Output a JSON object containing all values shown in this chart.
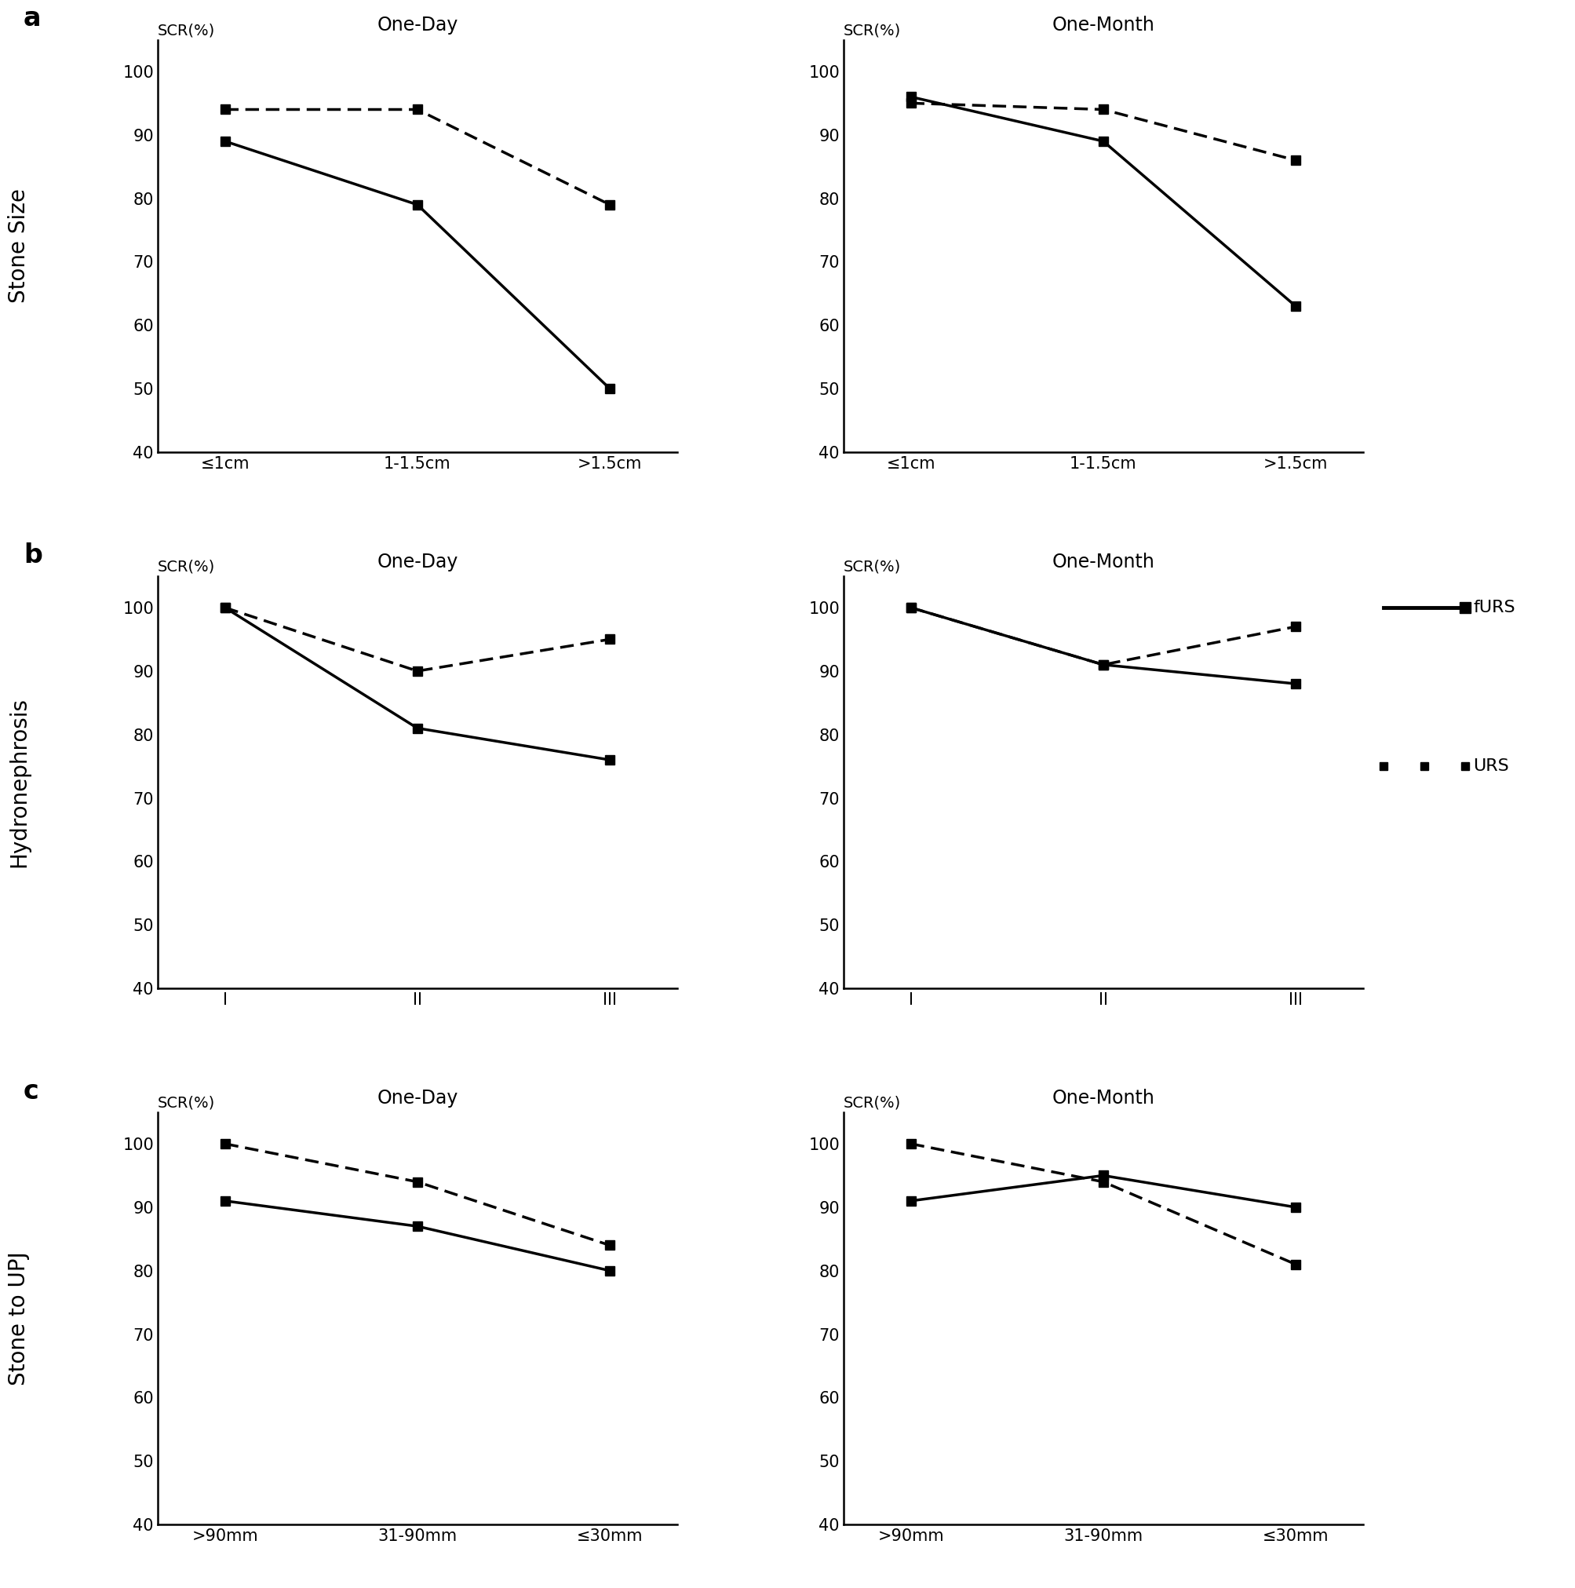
{
  "panels": [
    {
      "label": "a",
      "row_label": "Stone Size",
      "subplots": [
        {
          "title": "One-Day",
          "xticks": [
            "≤1cm",
            "1-1.5cm",
            ">1.5cm"
          ],
          "fURS": [
            89,
            79,
            50
          ],
          "URS": [
            94,
            94,
            79
          ]
        },
        {
          "title": "One-Month",
          "xticks": [
            "≤1cm",
            "1-1.5cm",
            ">1.5cm"
          ],
          "fURS": [
            96,
            89,
            63
          ],
          "URS": [
            95,
            94,
            86
          ]
        }
      ]
    },
    {
      "label": "b",
      "row_label": "Hydronephrosis",
      "subplots": [
        {
          "title": "One-Day",
          "xticks": [
            "I",
            "II",
            "III"
          ],
          "fURS": [
            100,
            81,
            76
          ],
          "URS": [
            100,
            90,
            95
          ]
        },
        {
          "title": "One-Month",
          "xticks": [
            "I",
            "II",
            "III"
          ],
          "fURS": [
            100,
            91,
            88
          ],
          "URS": [
            100,
            91,
            97
          ]
        }
      ]
    },
    {
      "label": "c",
      "row_label": "Stone to UPJ",
      "subplots": [
        {
          "title": "One-Day",
          "xticks": [
            ">90mm",
            "31-90mm",
            "≤30mm"
          ],
          "fURS": [
            91,
            87,
            80
          ],
          "URS": [
            100,
            94,
            84
          ]
        },
        {
          "title": "One-Month",
          "xticks": [
            ">90mm",
            "31-90mm",
            "≤30mm"
          ],
          "fURS": [
            91,
            95,
            90
          ],
          "URS": [
            100,
            94,
            81
          ]
        }
      ]
    }
  ],
  "ylim": [
    40,
    105
  ],
  "yticks": [
    40,
    50,
    60,
    70,
    80,
    90,
    100
  ],
  "solid_color": "#000000",
  "dashed_color": "#000000",
  "linewidth": 2.5,
  "marker": "s",
  "markersize": 9,
  "legend_solid_label": "fURS",
  "legend_dashed_label": "URS",
  "title_fontsize": 17,
  "tick_fontsize": 15,
  "label_fontsize": 15,
  "panel_label_fontsize": 24,
  "row_label_fontsize": 20,
  "legend_fontsize": 16
}
